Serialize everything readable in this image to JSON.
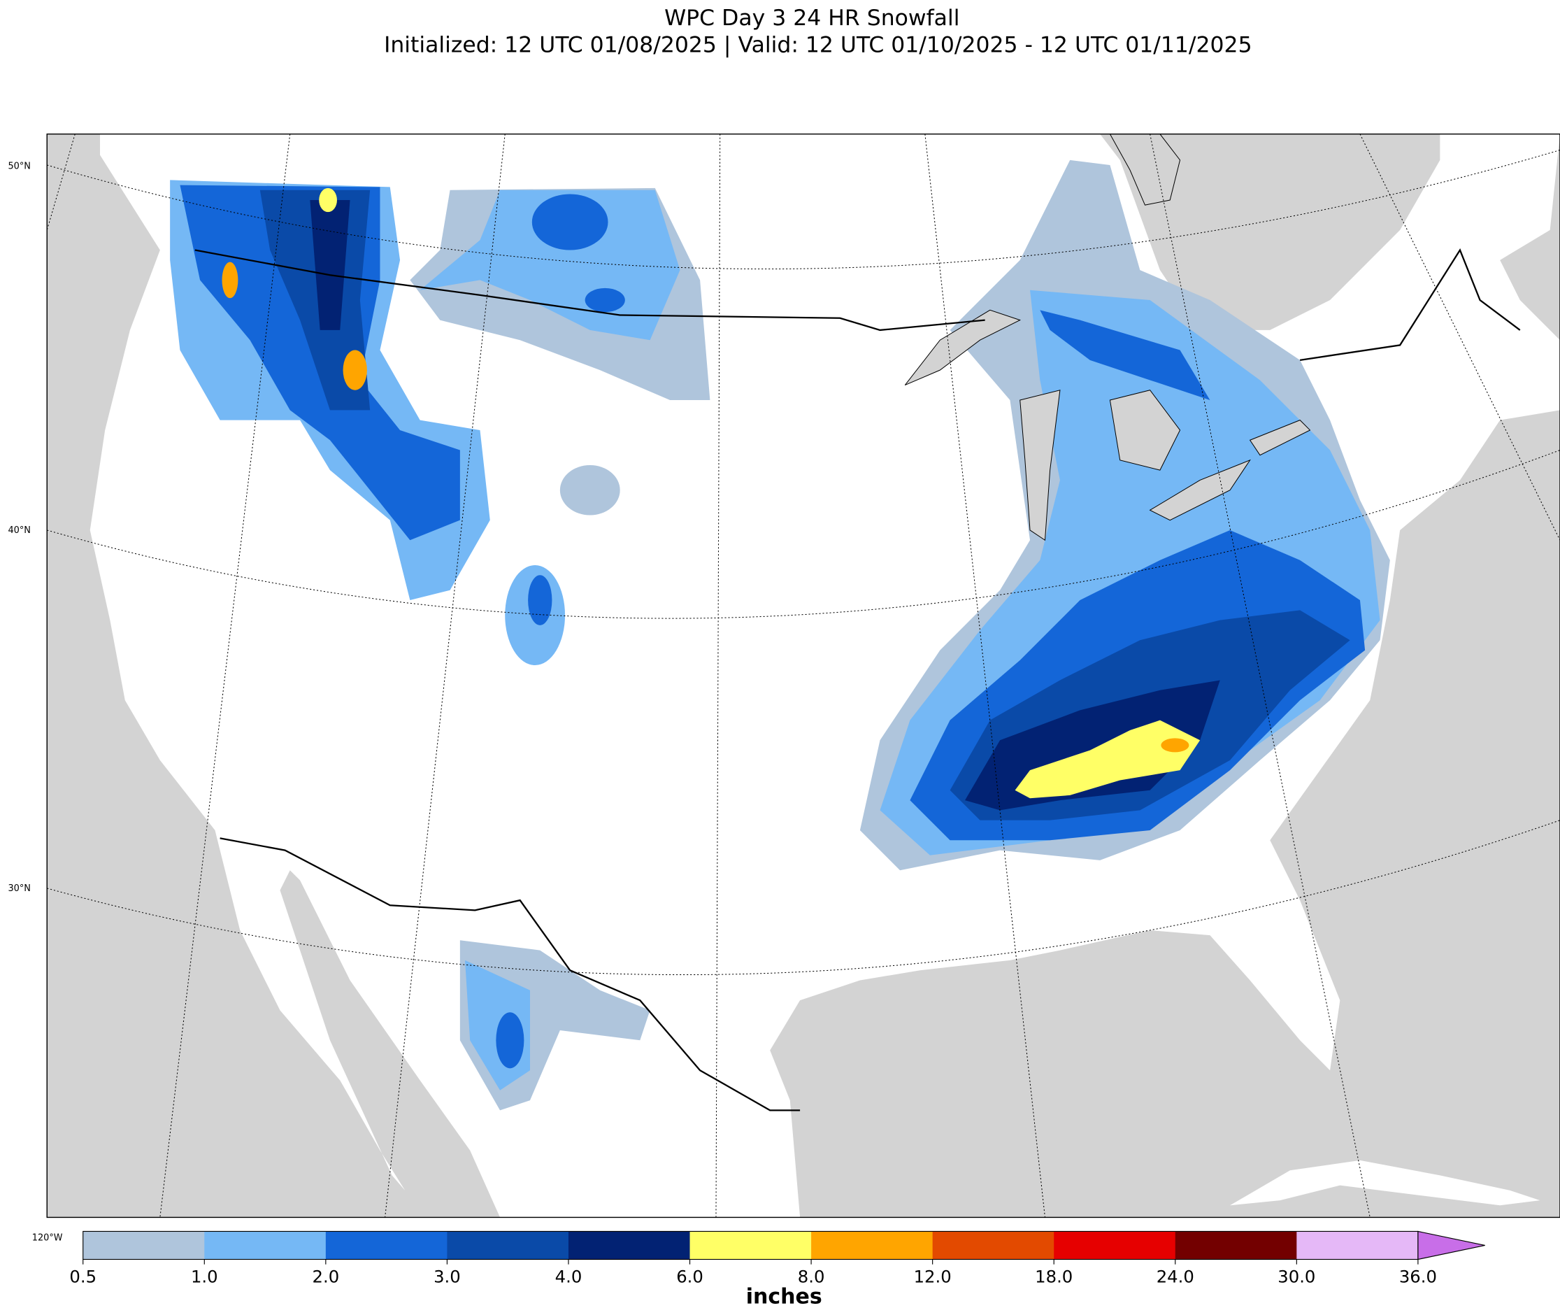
{
  "title": "WPC Day 3 24 HR Snowfall",
  "subtitle": "Initialized: 12 UTC 01/08/2025 | Valid: 12 UTC 01/10/2025 - 12 UTC 01/11/2025",
  "map": {
    "lat_labels": [
      "50°N",
      "40°N",
      "30°N"
    ],
    "lon_labels": [
      "120°W"
    ],
    "ocean_color": "#d3d3d3",
    "land_color": "#ffffff"
  },
  "colorbar": {
    "label": "inches",
    "levels": [
      0.5,
      {
        "value": 1,
        "label": "1.0"
      },
      {
        "value": 2,
        "label": "2.0"
      },
      {
        "value": 3,
        "label": "3.0"
      },
      {
        "value": 4,
        "label": "4.0"
      },
      {
        "value": 6,
        "label": "6.0"
      },
      {
        "value": 8,
        "label": "8.0"
      },
      {
        "value": 12,
        "label": "12.0"
      },
      {
        "value": 18,
        "label": "18.0"
      },
      {
        "value": 24,
        "label": "24.0"
      },
      {
        "value": 30,
        "label": "30.0"
      },
      {
        "value": 36,
        "label": "36.0"
      }
    ],
    "colors": [
      "#afc5dc",
      "#75b8f5",
      "#1466d8",
      "#0a4aa8",
      "#022273",
      "#ffff66",
      "#ffa500",
      "#e34a00",
      "#e60000",
      "#730000",
      "#e5b8f7",
      "#c86ee8"
    ]
  }
}
